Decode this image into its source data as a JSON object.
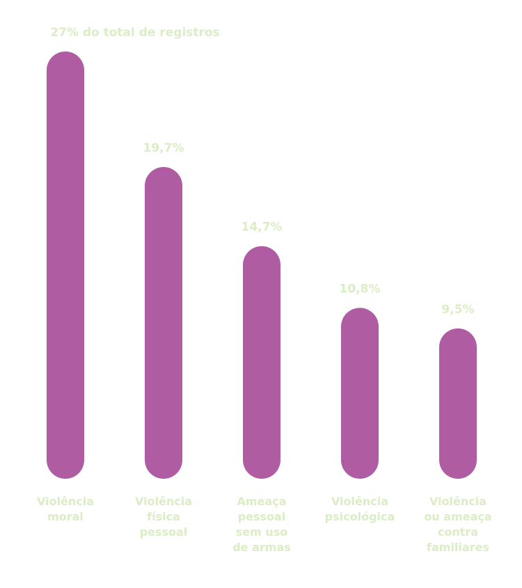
{
  "colors": {
    "bar": "#b05ca3",
    "text": "#dbedc4",
    "background": "#ffffff"
  },
  "chart_data": {
    "type": "bar",
    "title": "",
    "xlabel": "",
    "ylabel": "",
    "ylim": [
      0,
      27
    ],
    "unit": "%",
    "categories": [
      [
        "Violência",
        "moral"
      ],
      [
        "Violência",
        "física",
        "pessoal"
      ],
      [
        "Ameaça",
        "pessoal",
        "sem uso",
        "de armas"
      ],
      [
        "Violência",
        "psicológica"
      ],
      [
        "Violência",
        "ou ameaça",
        "contra",
        "familiares"
      ]
    ],
    "values": [
      27,
      19.7,
      14.7,
      10.8,
      9.5
    ],
    "value_labels": [
      "27% do total de registros",
      "19,7%",
      "14,7%",
      "10,8%",
      "9,5%"
    ],
    "grid": false,
    "legend": "none"
  }
}
